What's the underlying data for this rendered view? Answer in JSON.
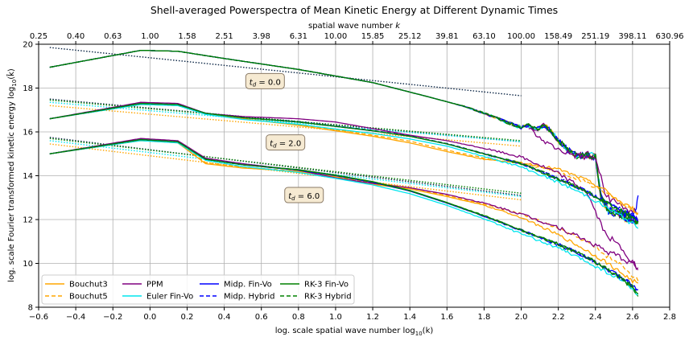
{
  "chart_data": {
    "type": "line",
    "title": "Shell-averaged Powerspectra of Mean Kinetic Energy at Different Dynamic Times",
    "xlabel": "log. scale spatial wave number log$_{10}$(k)",
    "xlabel_plain": "log. scale spatial wave number log",
    "xlabel_sub": "10",
    "xlabel_tail": "(k)",
    "ylabel_plain": "log. scale Fourier transformed kinetic energy log",
    "ylabel_sub": "10",
    "ylabel_tail": "(k̂)",
    "top_xlabel_plain": "spatial wave number ",
    "top_xlabel_italic": "k",
    "xlim": [
      -0.6,
      2.8
    ],
    "ylim": [
      8,
      20
    ],
    "xticks": [
      -0.6,
      -0.4,
      -0.2,
      0.0,
      0.2,
      0.4,
      0.6,
      0.8,
      1.0,
      1.2,
      1.4,
      1.6,
      1.8,
      2.0,
      2.2,
      2.4,
      2.6,
      2.8
    ],
    "xtick_labels": [
      "−0.6",
      "−0.4",
      "−0.2",
      "0.0",
      "0.2",
      "0.4",
      "0.6",
      "0.8",
      "1.0",
      "1.2",
      "1.4",
      "1.6",
      "1.8",
      "2.0",
      "2.2",
      "2.4",
      "2.6",
      "2.8"
    ],
    "yticks": [
      8,
      10,
      12,
      14,
      16,
      18,
      20
    ],
    "ytick_labels": [
      "8",
      "10",
      "12",
      "14",
      "16",
      "18",
      "20"
    ],
    "top_tick_labels": [
      "0.25",
      "0.40",
      "0.63",
      "1.00",
      "1.58",
      "2.51",
      "3.98",
      "6.31",
      "10.00",
      "15.85",
      "25.12",
      "39.81",
      "63.10",
      "100.00",
      "158.49",
      "251.19",
      "398.11",
      "630.96"
    ],
    "grid": true,
    "legend_placement": "lower-left",
    "legend": [
      {
        "name": "Bouchut3",
        "color": "#ffa500",
        "dash": "solid"
      },
      {
        "name": "Bouchut5",
        "color": "#ffa500",
        "dash": "dashed"
      },
      {
        "name": "PPM",
        "color": "#800080",
        "dash": "solid"
      },
      {
        "name": "Euler Fin-Vo",
        "color": "#00e5ee",
        "dash": "solid"
      },
      {
        "name": "Midp. Fin-Vo",
        "color": "#0000ff",
        "dash": "solid"
      },
      {
        "name": "Midp. Hybrid",
        "color": "#0000ff",
        "dash": "dashed"
      },
      {
        "name": "RK-3  Fin-Vo",
        "color": "#008000",
        "dash": "solid"
      },
      {
        "name": "RK-3  Hybrid",
        "color": "#008000",
        "dash": "dashed"
      }
    ],
    "annotations": [
      {
        "pre": "t",
        "sub": "d",
        "post": " = 0.0",
        "x": 0.62,
        "y": 18.3
      },
      {
        "pre": "t",
        "sub": "d",
        "post": " = 2.0",
        "x": 0.73,
        "y": 15.5
      },
      {
        "pre": "t",
        "sub": "d",
        "post": " = 6.0",
        "x": 0.83,
        "y": 13.1
      }
    ],
    "groups": [
      {
        "label": "t_d = 0.0",
        "base": {
          "x": [
            -0.54,
            -0.05,
            0.15,
            0.4,
            0.8,
            1.2,
            1.5,
            1.7,
            1.85,
            1.95,
            2.0,
            2.04,
            2.08,
            2.12,
            2.16,
            2.2,
            2.25,
            2.3,
            2.36,
            2.4,
            2.43,
            2.47,
            2.52,
            2.56,
            2.6,
            2.63
          ],
          "y": [
            18.95,
            19.72,
            19.68,
            19.35,
            18.85,
            18.25,
            17.6,
            17.15,
            16.7,
            16.35,
            16.2,
            16.3,
            16.1,
            16.3,
            16.05,
            15.6,
            15.2,
            14.9,
            14.95,
            14.85,
            13.0,
            12.4,
            12.3,
            12.1,
            12.0,
            11.9
          ]
        },
        "divergences": [
          {
            "series": "PPM",
            "from": 2.04,
            "x": [
              2.04,
              2.1,
              2.2,
              2.3,
              2.38,
              2.4,
              2.45,
              2.5,
              2.55,
              2.6,
              2.62
            ],
            "y": [
              16.2,
              15.7,
              15.2,
              14.9,
              14.8,
              14.85,
              13.2,
              12.8,
              12.6,
              12.3,
              12.3
            ]
          },
          {
            "series": "Midp. Fin-Vo",
            "from": 2.55,
            "x": [
              2.55,
              2.6,
              2.62,
              2.63
            ],
            "y": [
              12.2,
              12.3,
              12.5,
              13.1
            ]
          }
        ],
        "fit": {
          "x": [
            -0.54,
            2.0
          ],
          "y": [
            19.85,
            17.65
          ]
        }
      },
      {
        "label": "t_d = 2.0",
        "base": {
          "x": [
            -0.54,
            -0.05,
            0.15,
            0.3,
            0.5,
            0.8,
            1.0,
            1.2,
            1.4,
            1.6,
            1.8,
            2.0,
            2.2,
            2.35,
            2.45,
            2.55,
            2.6,
            2.63
          ],
          "y": [
            16.6,
            17.3,
            17.25,
            16.85,
            16.65,
            16.45,
            16.25,
            16.05,
            15.8,
            15.45,
            15.0,
            14.55,
            13.85,
            13.3,
            12.8,
            12.4,
            12.2,
            12.0
          ]
        },
        "variants": {
          "Bouchut3": [
            0,
            -0.05,
            -0.05,
            0,
            -0.05,
            -0.15,
            -0.2,
            -0.25,
            -0.3,
            -0.35,
            -0.25,
            0.05,
            0.45,
            0.5,
            0.55,
            0.3,
            0.3,
            0.3
          ],
          "Bouchut5": [
            0,
            -0.05,
            -0.05,
            0,
            -0.05,
            -0.12,
            -0.15,
            -0.2,
            -0.22,
            -0.28,
            -0.2,
            0.0,
            0.3,
            0.4,
            0.45,
            0.25,
            0.25,
            0.25
          ],
          "PPM": [
            0,
            0.05,
            0.05,
            0,
            0.05,
            0.15,
            0.2,
            0.1,
            0.05,
            0.15,
            0.25,
            0.3,
            0.25,
            0.0,
            -1.4,
            -1.8,
            -2.2,
            -2.3
          ],
          "Euler Fin-Vo": [
            0,
            -0.05,
            -0.05,
            -0.05,
            -0.08,
            -0.1,
            -0.12,
            -0.12,
            -0.12,
            -0.1,
            -0.12,
            -0.15,
            -0.15,
            -0.2,
            -0.2,
            -0.3,
            -0.4,
            -0.4
          ],
          "Midp. Fin-Vo": [
            0,
            0,
            0,
            0,
            0,
            0,
            0,
            0,
            0,
            0,
            0,
            0,
            0,
            0,
            0,
            0,
            0,
            0
          ],
          "Midp. Hybrid": [
            0,
            0,
            0,
            0,
            0,
            0.02,
            0.02,
            0.02,
            0.02,
            0.02,
            0.02,
            0.02,
            0.02,
            0,
            0,
            0,
            0,
            0
          ],
          "RK-3  Fin-Vo": [
            0,
            0,
            0,
            0,
            0,
            0,
            0,
            0,
            0,
            0,
            0,
            0,
            0,
            0,
            0,
            -0.05,
            -0.05,
            -0.2
          ],
          "RK-3  Hybrid": [
            0,
            0,
            0,
            0,
            0,
            0.01,
            0.01,
            0.01,
            0.01,
            0.01,
            0.01,
            0.01,
            0.01,
            0.0,
            0.0,
            -0.05,
            -0.1,
            -0.3
          ]
        },
        "fits": [
          {
            "x": [
              -0.54,
              2.0
            ],
            "y": [
              17.5,
              15.55
            ],
            "color": "#0b2545"
          },
          {
            "x": [
              -0.54,
              2.0
            ],
            "y": [
              17.45,
              15.6
            ],
            "color": "#008000"
          },
          {
            "x": [
              -0.54,
              2.0
            ],
            "y": [
              17.35,
              15.55
            ],
            "color": "#00e5ee"
          },
          {
            "x": [
              -0.54,
              2.0
            ],
            "y": [
              17.2,
              15.35
            ],
            "color": "#ffa500"
          }
        ]
      },
      {
        "label": "t_d = 6.0",
        "base": {
          "x": [
            -0.54,
            -0.05,
            0.15,
            0.3,
            0.5,
            0.8,
            1.0,
            1.2,
            1.4,
            1.6,
            1.8,
            2.0,
            2.2,
            2.35,
            2.45,
            2.55,
            2.6,
            2.63
          ],
          "y": [
            15.0,
            15.65,
            15.55,
            14.75,
            14.5,
            14.25,
            14.0,
            13.7,
            13.3,
            12.75,
            12.15,
            11.5,
            10.85,
            10.3,
            9.8,
            9.3,
            9.0,
            8.8
          ]
        },
        "variants": {
          "Bouchut3": [
            0,
            -0.05,
            -0.05,
            -0.2,
            -0.15,
            -0.05,
            -0.05,
            -0.1,
            0.1,
            0.3,
            0.5,
            0.6,
            0.45,
            0.3,
            0.3,
            0.2,
            0.2,
            0.3
          ],
          "Bouchut5": [
            0,
            -0.05,
            -0.05,
            -0.15,
            -0.1,
            -0.05,
            -0.05,
            0,
            0.15,
            0.35,
            0.55,
            0.75,
            0.75,
            0.7,
            0.6,
            0.55,
            0.45,
            0.4
          ],
          "PPM": [
            0,
            0.05,
            0.05,
            0.05,
            0.05,
            0.0,
            -0.1,
            -0.05,
            0.15,
            0.4,
            0.6,
            0.75,
            0.8,
            0.75,
            0.8,
            0.9,
            1.0,
            1.0
          ],
          "Euler Fin-Vo": [
            0,
            -0.05,
            -0.05,
            -0.05,
            -0.08,
            -0.1,
            -0.12,
            -0.12,
            -0.12,
            -0.1,
            -0.12,
            -0.15,
            -0.15,
            -0.2,
            -0.15,
            -0.1,
            -0.2,
            -0.2
          ],
          "Midp. Fin-Vo": [
            0,
            0,
            0,
            0,
            0,
            0,
            0,
            0,
            0,
            0,
            0,
            0,
            0,
            0,
            0,
            0,
            0,
            0
          ],
          "Midp. Hybrid": [
            0,
            0,
            0,
            0,
            0,
            0.02,
            0.02,
            0.02,
            0.02,
            0.02,
            0.02,
            0.02,
            0.02,
            0,
            0,
            0,
            0,
            0
          ],
          "RK-3  Fin-Vo": [
            0,
            0,
            0,
            0,
            0,
            0.03,
            0.03,
            0.03,
            0.03,
            0.03,
            0.03,
            0.03,
            0.03,
            0.02,
            0.0,
            -0.05,
            -0.1,
            -0.2
          ],
          "RK-3  Hybrid": [
            0,
            0,
            0,
            0,
            0,
            0.01,
            0.01,
            0.01,
            0.01,
            0.01,
            0.01,
            0.01,
            0.01,
            0.0,
            0.0,
            0.0,
            -0.1,
            -0.3
          ]
        },
        "fits": [
          {
            "x": [
              -0.54,
              2.0
            ],
            "y": [
              15.75,
              13.1
            ],
            "color": "#0b2545"
          },
          {
            "x": [
              -0.54,
              2.0
            ],
            "y": [
              15.7,
              13.2
            ],
            "color": "#008000"
          },
          {
            "x": [
              -0.54,
              2.0
            ],
            "y": [
              15.6,
              13.05
            ],
            "color": "#00e5ee"
          },
          {
            "x": [
              -0.54,
              2.0
            ],
            "y": [
              15.45,
              12.9
            ],
            "color": "#ffa500"
          }
        ]
      }
    ]
  }
}
